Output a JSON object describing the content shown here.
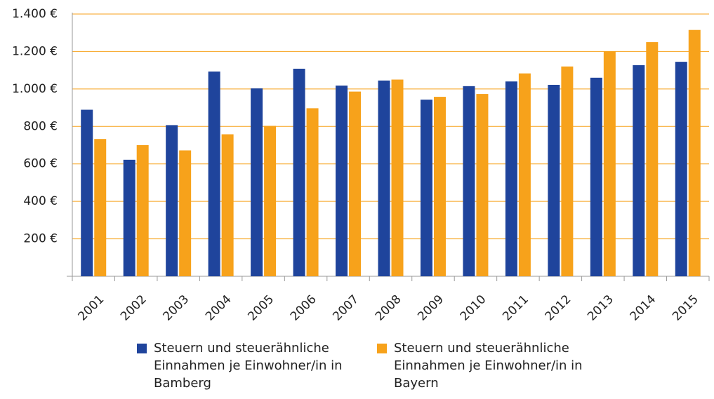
{
  "chart_data": {
    "type": "bar",
    "categories": [
      "2001",
      "2002",
      "2003",
      "2004",
      "2005",
      "2006",
      "2007",
      "2008",
      "2009",
      "2010",
      "2011",
      "2012",
      "2013",
      "2014",
      "2015"
    ],
    "series": [
      {
        "name": "Steuern und steuerähnliche Einnahmen je Einwohner/in in Bamberg",
        "color": "#1f449c",
        "values": [
          889,
          622,
          807,
          1093,
          1003,
          1108,
          1018,
          1045,
          943,
          1015,
          1040,
          1022,
          1060,
          1127,
          1145
        ]
      },
      {
        "name": "Steuern und steuerähnliche Einnahmen je Einwohner/in in Bayern",
        "color": "#f7a21b",
        "values": [
          733,
          700,
          672,
          758,
          803,
          897,
          986,
          1050,
          958,
          973,
          1083,
          1120,
          1200,
          1250,
          1315
        ]
      }
    ],
    "ylim": [
      0,
      1400
    ],
    "yticks": [
      {
        "value": 200,
        "label": "200 €"
      },
      {
        "value": 400,
        "label": "400 €"
      },
      {
        "value": 600,
        "label": "600 €"
      },
      {
        "value": 800,
        "label": "800 €"
      },
      {
        "value": 1000,
        "label": "1.000 €"
      },
      {
        "value": 1200,
        "label": "1.200 €"
      },
      {
        "value": 1400,
        "label": "1.400 €"
      }
    ],
    "grid": true,
    "grid_color": "#f7a21b"
  }
}
